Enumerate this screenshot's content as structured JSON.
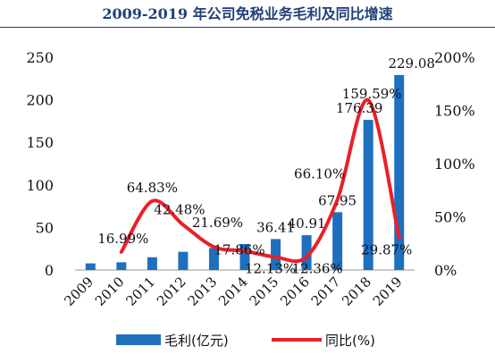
{
  "title": "2009-2019 年公司免税业务毛利及同比增速",
  "chart_data": {
    "type": "bar+line",
    "categories": [
      "2009",
      "2010",
      "2011",
      "2012",
      "2013",
      "2014",
      "2015",
      "2016",
      "2017",
      "2018",
      "2019"
    ],
    "series": [
      {
        "name": "毛利(亿元)",
        "type": "bar",
        "axis": "left",
        "color": "#1f6fbf",
        "values": [
          7.8,
          9.1,
          15.0,
          21.4,
          25.9,
          30.5,
          36.41,
          40.91,
          67.95,
          176.39,
          229.08
        ],
        "labels": [
          "",
          "",
          "",
          "",
          "",
          "",
          "36.41",
          "40.91",
          "67.95",
          "176.39",
          "229.08"
        ]
      },
      {
        "name": "同比(%)",
        "type": "line",
        "axis": "right",
        "color": "#e8202a",
        "values": [
          null,
          16.99,
          64.83,
          42.48,
          21.69,
          17.86,
          12.13,
          12.36,
          66.1,
          159.59,
          29.87
        ],
        "labels": [
          "",
          "16.99%",
          "64.83%",
          "42.48%",
          "21.69%",
          "17.86%",
          "12.13%",
          "12.36%",
          "66.10%",
          "159.59%",
          "29.87%"
        ]
      }
    ],
    "y_left": {
      "min": 0,
      "max": 250,
      "ticks": [
        "0",
        "50",
        "100",
        "150",
        "200",
        "250"
      ]
    },
    "y_right": {
      "min": 0,
      "max": 200,
      "ticks": [
        "0%",
        "50%",
        "100%",
        "150%",
        "200%"
      ]
    },
    "legend_position": "bottom",
    "grid": false
  }
}
